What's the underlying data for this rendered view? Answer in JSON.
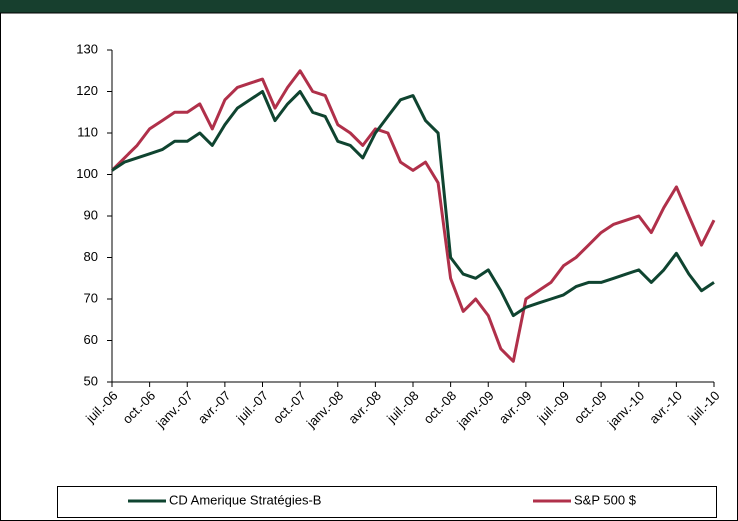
{
  "chart_data": {
    "type": "line",
    "categories": [
      "juil.-06",
      null,
      null,
      "oct.-06",
      null,
      null,
      "janv.-07",
      null,
      null,
      "avr.-07",
      null,
      null,
      "juil.-07",
      null,
      null,
      "oct.-07",
      null,
      null,
      "janv.-08",
      null,
      null,
      "avr.-08",
      null,
      null,
      "juil.-08",
      null,
      null,
      "oct.-08",
      null,
      null,
      "janv.-09",
      null,
      null,
      "avr.-09",
      null,
      null,
      "juil.-09",
      null,
      null,
      "oct.-09",
      null,
      null,
      "janv.-10",
      null,
      null,
      "avr.-10",
      null,
      null,
      "juil.-10"
    ],
    "series": [
      {
        "name": "CD Amerique Stratégies-B",
        "color": "#0f4430",
        "values": [
          101,
          103,
          104,
          105,
          106,
          108,
          108,
          110,
          107,
          112,
          116,
          118,
          120,
          113,
          117,
          120,
          115,
          114,
          108,
          107,
          104,
          110,
          114,
          118,
          119,
          113,
          110,
          80,
          76,
          75,
          77,
          72,
          66,
          68,
          69,
          70,
          71,
          73,
          74,
          74,
          75,
          76,
          77,
          74,
          77,
          81,
          76,
          72,
          74
        ]
      },
      {
        "name": "S&P 500 $",
        "color": "#b0304a",
        "values": [
          101,
          104,
          107,
          111,
          113,
          115,
          115,
          117,
          111,
          118,
          121,
          122,
          123,
          116,
          121,
          125,
          120,
          119,
          112,
          110,
          107,
          111,
          110,
          103,
          101,
          103,
          98,
          75,
          67,
          70,
          66,
          58,
          55,
          70,
          72,
          74,
          78,
          80,
          83,
          86,
          88,
          89,
          90,
          86,
          92,
          97,
          90,
          83,
          89
        ]
      }
    ],
    "ylim": [
      50,
      130
    ],
    "yticks": [
      50,
      60,
      70,
      80,
      90,
      100,
      110,
      120,
      130
    ]
  }
}
